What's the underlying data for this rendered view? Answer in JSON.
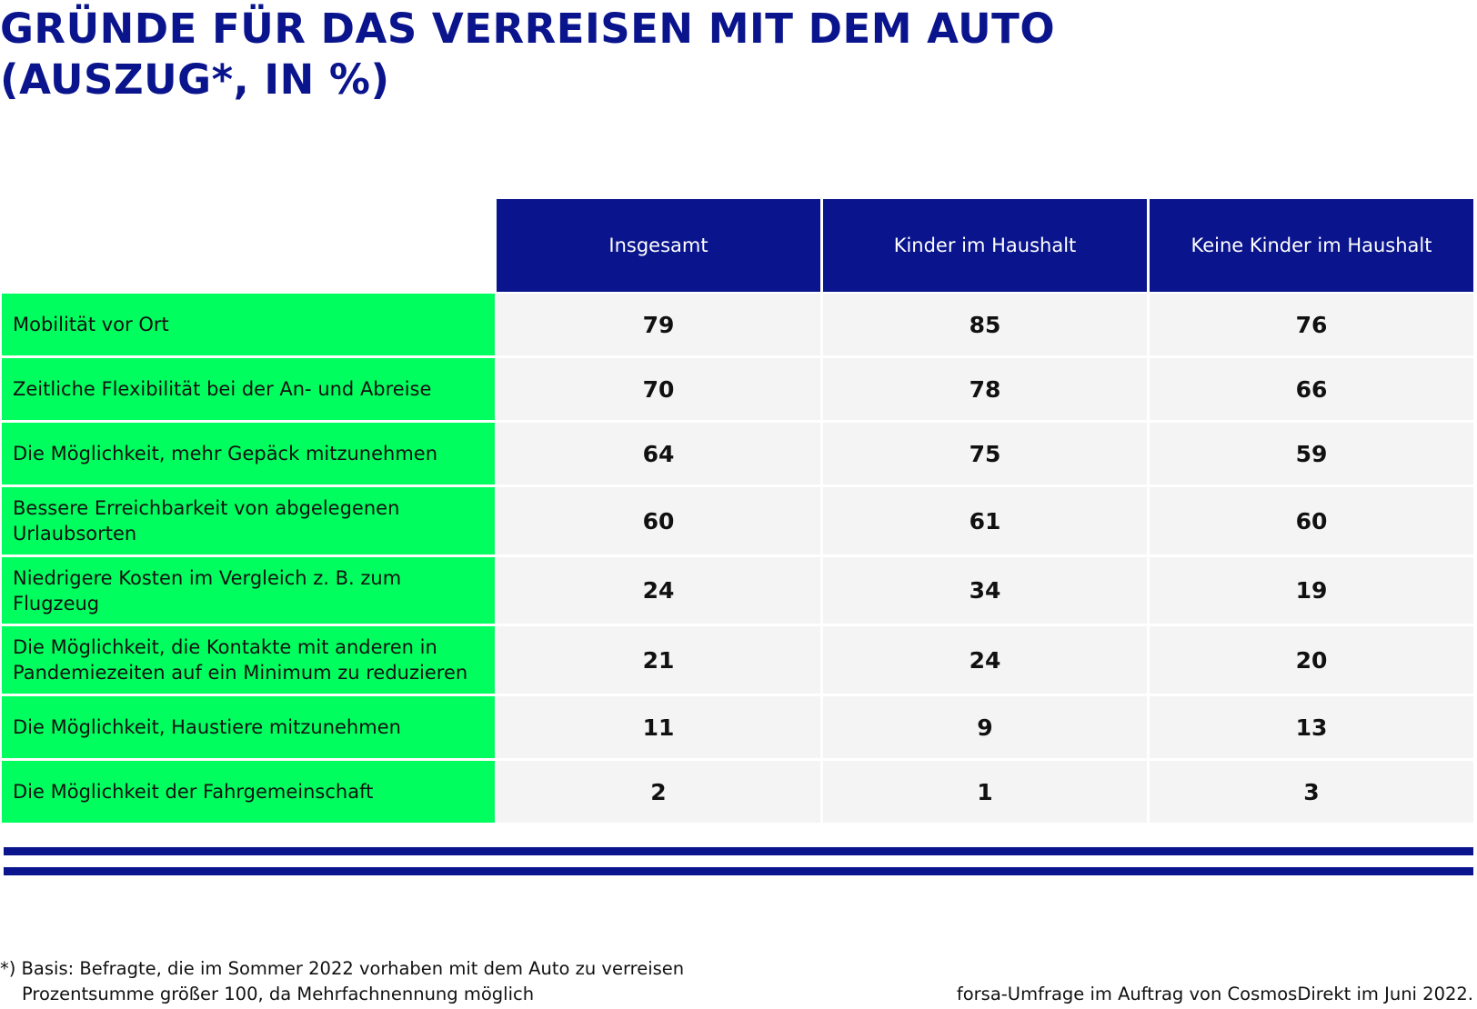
{
  "header": {
    "title_line1": "GRÜNDE FÜR DAS VERREISEN MIT DEM AUTO",
    "title_line2": "(AUSZUG*, IN %)"
  },
  "colors": {
    "header_blue": "#0a148c",
    "label_green": "#00ff5e",
    "value_gray": "#f4f4f4"
  },
  "chart_data": {
    "type": "table",
    "title": "GRÜNDE FÜR DAS VERREISEN MIT DEM AUTO (AUSZUG*, IN %)",
    "columns": [
      "Insgesamt",
      "Kinder im Haushalt",
      "Keine Kinder im Haushalt"
    ],
    "rows": [
      {
        "label": "Mobilität vor Ort",
        "values": [
          79,
          85,
          76
        ]
      },
      {
        "label": "Zeitliche Flexibilität bei der An- und Abreise",
        "values": [
          70,
          78,
          66
        ]
      },
      {
        "label": "Die Möglichkeit, mehr Gepäck mitzunehmen",
        "values": [
          64,
          75,
          59
        ]
      },
      {
        "label": "Bessere Erreichbarkeit von abgelegenen Urlaubsorten",
        "values": [
          60,
          61,
          60
        ]
      },
      {
        "label": "Niedrigere Kosten im Vergleich z. B. zum Flugzeug",
        "values": [
          24,
          34,
          19
        ]
      },
      {
        "label": "Die Möglichkeit, die Kontakte mit anderen in Pandemiezeiten auf ein Minimum zu reduzieren",
        "values": [
          21,
          24,
          20
        ]
      },
      {
        "label": "Die Möglichkeit, Haustiere mitzunehmen",
        "values": [
          11,
          9,
          13
        ]
      },
      {
        "label": "Die Möglichkeit der Fahrgemeinschaft",
        "values": [
          2,
          1,
          3
        ]
      }
    ]
  },
  "footer": {
    "note_line1": "*) Basis: Befragte, die im Sommer 2022 vorhaben mit dem Auto zu verreisen",
    "note_line2": "Prozentsumme größer 100, da Mehrfachnennung möglich",
    "source": "forsa-Umfrage im Auftrag von CosmosDirekt im Juni 2022."
  }
}
